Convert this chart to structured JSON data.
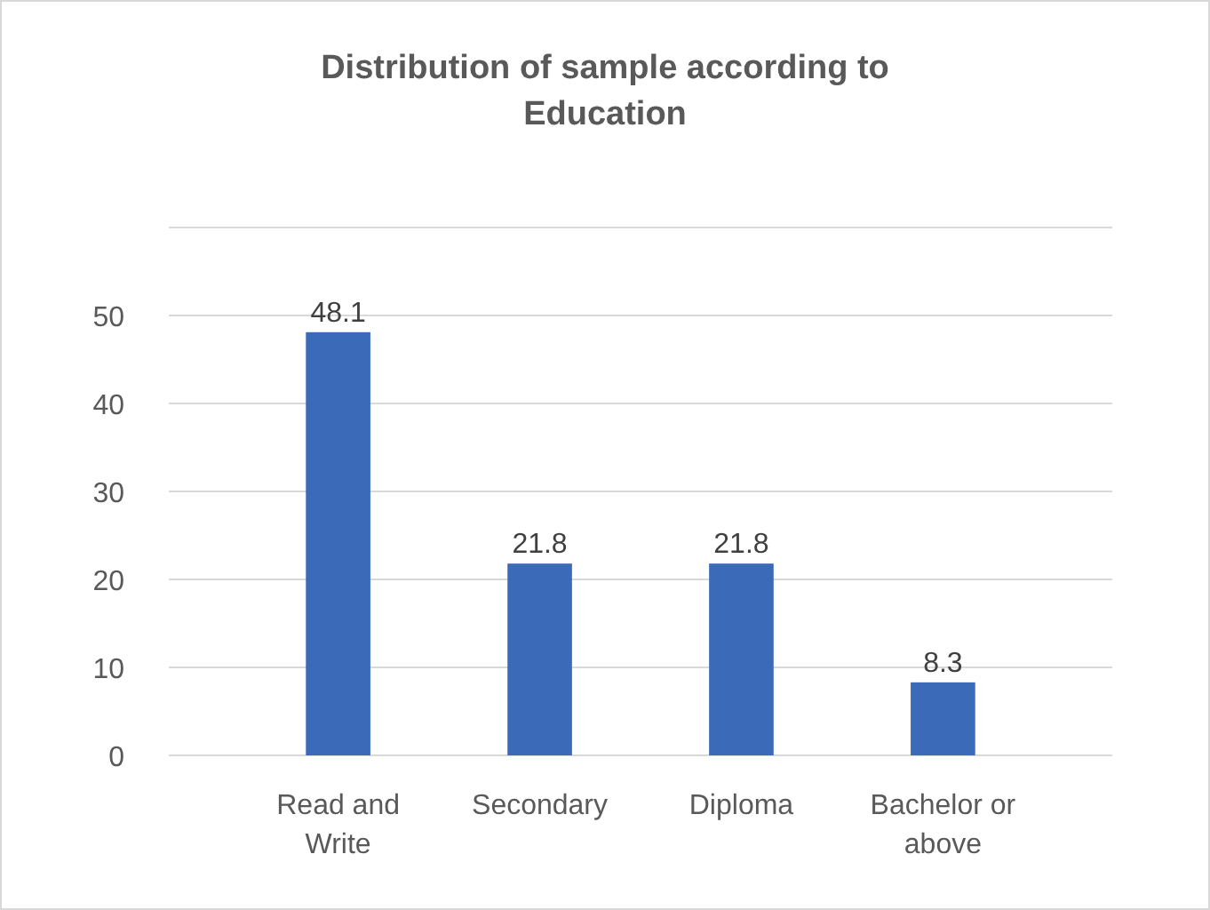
{
  "chart_data": {
    "type": "bar",
    "title": "Distribution of sample according to Education",
    "categories": [
      "Read and Write",
      "Secondary",
      "Diploma",
      "Bachelor or above"
    ],
    "values": [
      48.1,
      21.8,
      21.8,
      8.3
    ],
    "color": "#3a6ab8",
    "ylim": [
      0,
      60
    ],
    "yticks": [
      0,
      10,
      20,
      30,
      40,
      50,
      {
        "value": 60,
        "label": null
      }
    ],
    "grid": "y",
    "data_labels": true
  }
}
